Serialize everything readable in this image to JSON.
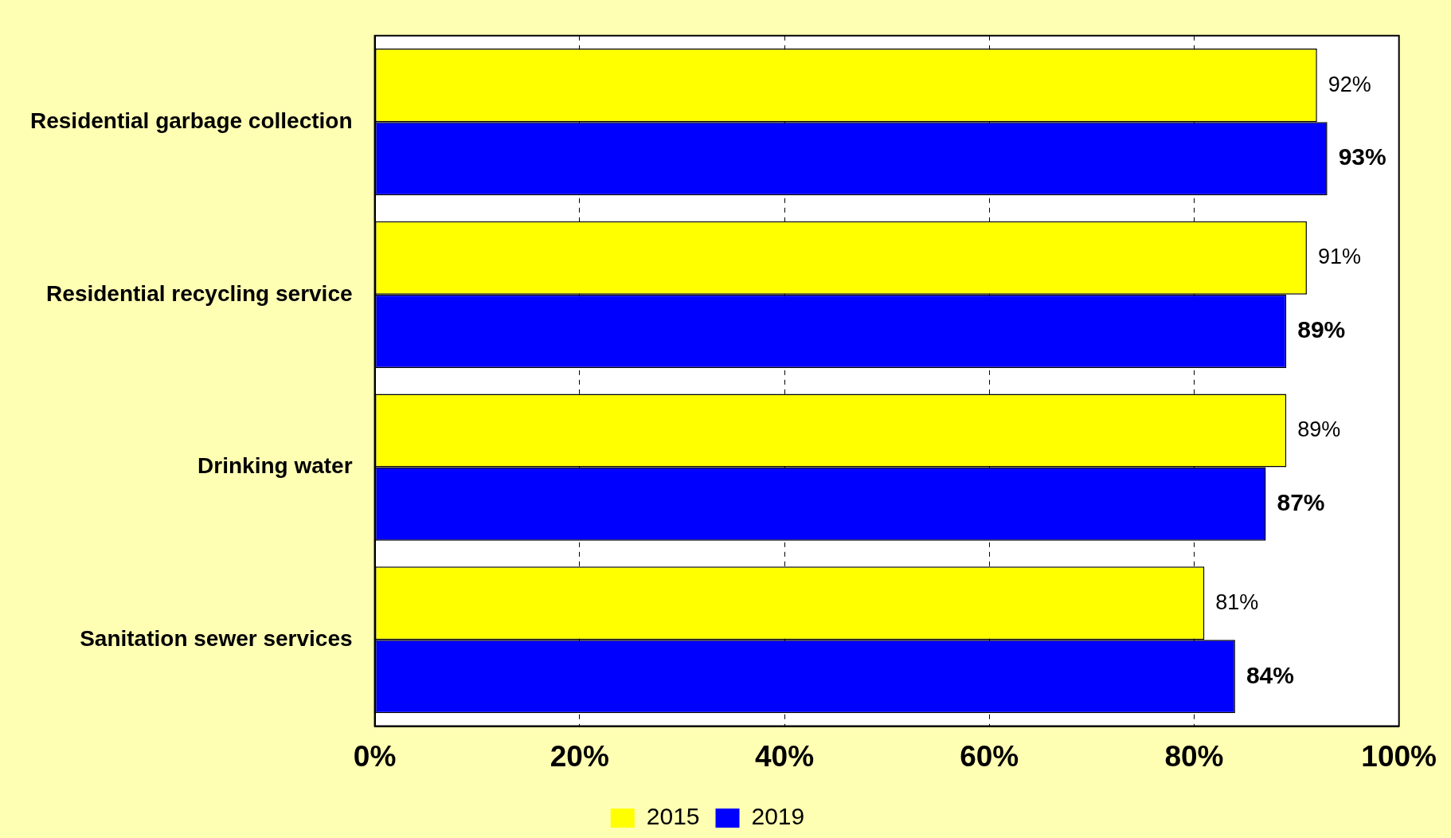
{
  "chart_data": {
    "type": "bar",
    "orientation": "horizontal",
    "categories": [
      "Residential garbage collection",
      "Residential recycling service",
      "Drinking water",
      "Sanitation sewer services"
    ],
    "series": [
      {
        "name": "2015",
        "color": "#ffff00",
        "values": [
          92,
          91,
          89,
          81
        ],
        "value_labels": [
          "92%",
          "91%",
          "89%",
          "81%"
        ]
      },
      {
        "name": "2019",
        "color": "#0000ff",
        "values": [
          93,
          89,
          87,
          84
        ],
        "value_labels": [
          "93%",
          "89%",
          "87%",
          "84%"
        ]
      }
    ],
    "xlim": [
      0,
      100
    ],
    "xticks": [
      {
        "value": 0,
        "label": "0%"
      },
      {
        "value": 20,
        "label": "20%"
      },
      {
        "value": 40,
        "label": "40%"
      },
      {
        "value": 60,
        "label": "60%"
      },
      {
        "value": 80,
        "label": "80%"
      },
      {
        "value": 100,
        "label": "100%"
      }
    ],
    "grid": "x",
    "legend": "bottom"
  }
}
